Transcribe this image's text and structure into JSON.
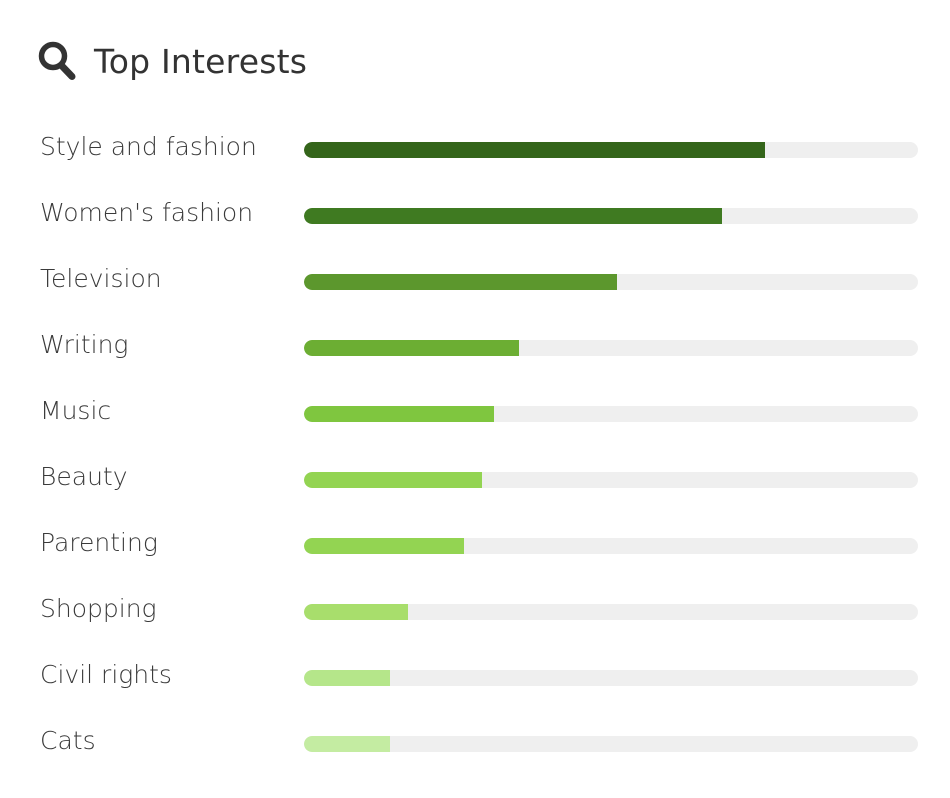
{
  "header": {
    "title": "Top Interests",
    "icon": "search-icon"
  },
  "colors": {
    "track": "#efefef",
    "text": "#333333"
  },
  "chart_data": {
    "type": "bar",
    "orientation": "horizontal",
    "title": "Top Interests",
    "xlim": [
      0,
      100
    ],
    "grid": false,
    "categories": [
      "Style and fashion",
      "Women's fashion",
      "Television",
      "Writing",
      "Music",
      "Beauty",
      "Parenting",
      "Shopping",
      "Civil rights",
      "Cats"
    ],
    "values": [
      75,
      68,
      51,
      35,
      31,
      29,
      26,
      17,
      14,
      14
    ],
    "colors": [
      "#34651a",
      "#3f7a21",
      "#5c972d",
      "#6cae33",
      "#7fc63f",
      "#93d452",
      "#93d452",
      "#a8de6c",
      "#b5e68a",
      "#c4eca2"
    ]
  }
}
